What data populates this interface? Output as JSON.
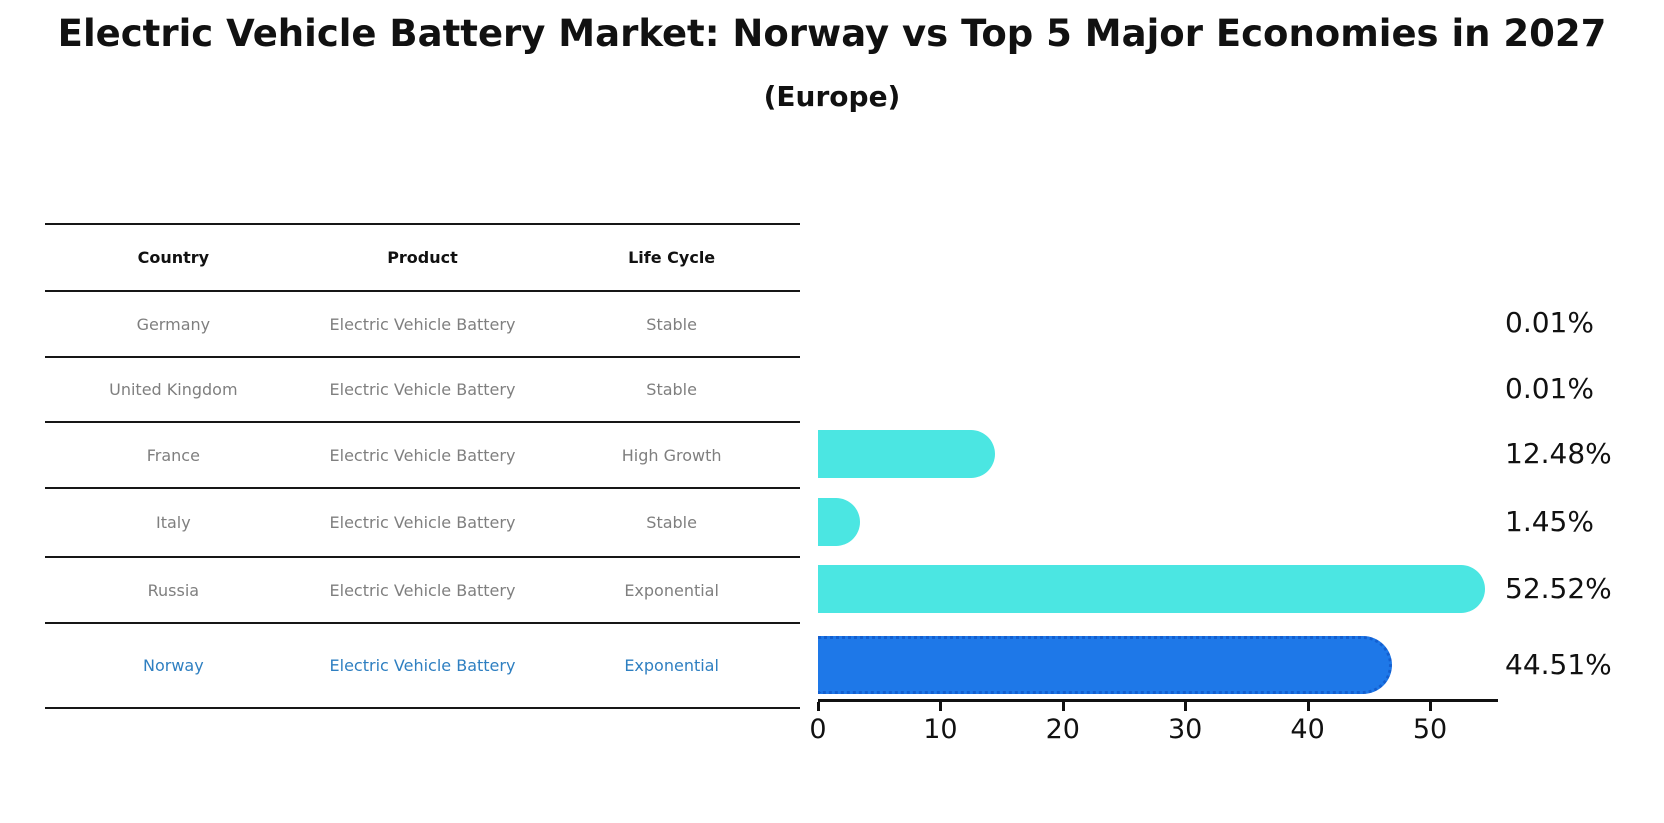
{
  "header": {
    "title": "Electric Vehicle Battery Market: Norway vs Top 5 Major Economies in 2027",
    "subtitle": "(Europe)"
  },
  "table": {
    "columns": [
      "Country",
      "Product",
      "Life Cycle"
    ],
    "rows": [
      {
        "country": "Germany",
        "product": "Electric Vehicle Battery",
        "life_cycle": "Stable",
        "value_label": "0.01%",
        "highlight": false
      },
      {
        "country": "United Kingdom",
        "product": "Electric Vehicle Battery",
        "life_cycle": "Stable",
        "value_label": "0.01%",
        "highlight": false
      },
      {
        "country": "France",
        "product": "Electric Vehicle Battery",
        "life_cycle": "High Growth",
        "value_label": "12.48%",
        "highlight": false
      },
      {
        "country": "Italy",
        "product": "Electric Vehicle Battery",
        "life_cycle": "Stable",
        "value_label": "1.45%",
        "highlight": false
      },
      {
        "country": "Russia",
        "product": "Electric Vehicle Battery",
        "life_cycle": "Exponential",
        "value_label": "52.52%",
        "highlight": false
      },
      {
        "country": "Norway",
        "product": "Electric Vehicle Battery",
        "life_cycle": "Exponential",
        "value_label": "44.51%",
        "highlight": true
      }
    ]
  },
  "chart_data": {
    "type": "bar",
    "orientation": "horizontal",
    "title": "Electric Vehicle Battery Market: Norway vs Top 5 Major Economies in 2027",
    "subtitle": "(Europe)",
    "categories": [
      "Germany",
      "United Kingdom",
      "France",
      "Italy",
      "Russia",
      "Norway"
    ],
    "values": [
      0.01,
      0.01,
      12.48,
      1.45,
      52.52,
      44.51
    ],
    "value_labels": [
      "0.01%",
      "0.01%",
      "12.48%",
      "1.45%",
      "52.52%",
      "44.51%"
    ],
    "xlabel": "",
    "ylabel": "",
    "xlim": [
      0,
      55.5
    ],
    "xticks": [
      0,
      10,
      20,
      30,
      40,
      50
    ],
    "grid": false,
    "legend": "none",
    "bar_color": "#4be6e2",
    "highlight_bar_color": "#1e78e8",
    "highlight_bar_border_color": "#135fd0",
    "highlight_index": 5,
    "highlight_text_color": "#2e7fc1"
  }
}
